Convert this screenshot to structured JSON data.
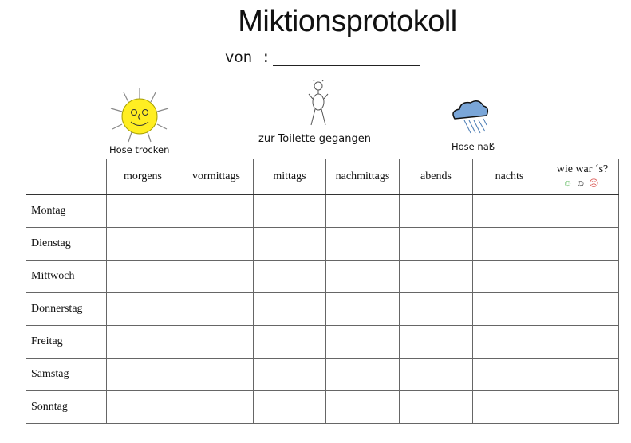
{
  "title": "Miktionsprotokoll",
  "von_label": "von :",
  "legend": {
    "dry": {
      "label": "Hose trocken",
      "icon": "sun-icon"
    },
    "toilet": {
      "label": "zur Toilette gegangen",
      "icon": "stick-figure-icon"
    },
    "wet": {
      "label": "Hose naß",
      "icon": "rain-cloud-icon"
    }
  },
  "table": {
    "columns": [
      "morgens",
      "vormittags",
      "mittags",
      "nachmittags",
      "abends",
      "nachts",
      "wie war ´s?"
    ],
    "rating_icons": [
      {
        "icon": "happy-face-icon",
        "glyph": "☺",
        "color": "#5cb85c"
      },
      {
        "icon": "neutral-face-icon",
        "glyph": "☺",
        "color": "#222222"
      },
      {
        "icon": "sad-face-icon",
        "glyph": "☹",
        "color": "#d9534f"
      }
    ],
    "rows": [
      "Montag",
      "Dienstag",
      "Mittwoch",
      "Donnerstag",
      "Freitag",
      "Samstag",
      "Sonntag"
    ]
  }
}
